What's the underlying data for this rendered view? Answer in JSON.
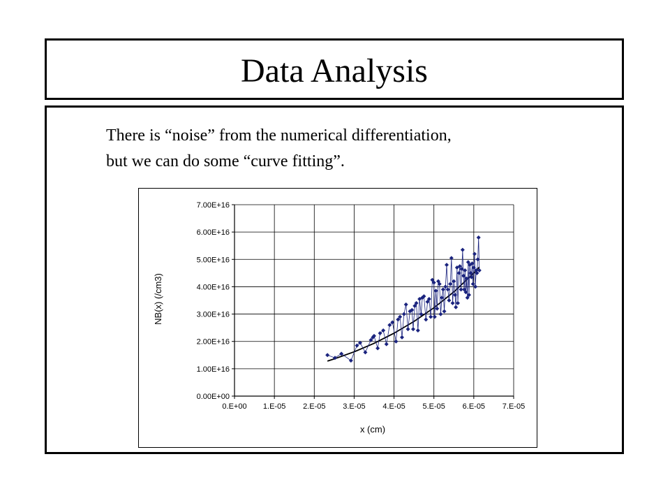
{
  "slide": {
    "title": "Data Analysis",
    "body_lines": [
      "There is “noise” from the numerical differentiation,",
      "but we can do some “curve fitting”."
    ]
  },
  "colors": {
    "series": "#1a237e",
    "trend": "#000000"
  },
  "chart_data": {
    "type": "scatter",
    "title": "",
    "xlabel": "x (cm)",
    "ylabel": "NB(x) (/cm3)",
    "xlim": [
      0,
      7e-05
    ],
    "ylim": [
      0,
      7e+16
    ],
    "x_ticks": [
      0,
      1e-05,
      2e-05,
      3e-05,
      4e-05,
      5e-05,
      6e-05,
      7e-05
    ],
    "x_tick_labels": [
      "0.E+00",
      "1.E-05",
      "2.E-05",
      "3.E-05",
      "4.E-05",
      "5.E-05",
      "6.E-05",
      "7.E-05"
    ],
    "y_ticks": [
      0,
      1e+16,
      2e+16,
      3e+16,
      4e+16,
      5e+16,
      6e+16,
      7e+16
    ],
    "y_tick_labels": [
      "0.00E+00",
      "1.00E+16",
      "2.00E+16",
      "3.00E+16",
      "4.00E+16",
      "5.00E+16",
      "6.00E+16",
      "7.00E+16"
    ],
    "grid": true,
    "legend": "none",
    "series": [
      {
        "style": "line+diamond-markers",
        "x": [
          2.33e-05,
          2.52e-05,
          2.68e-05,
          2.92e-05,
          3.07e-05,
          3.15e-05,
          3.28e-05,
          3.42e-05,
          3.47e-05,
          3.5e-05,
          3.59e-05,
          3.65e-05,
          3.73e-05,
          3.81e-05,
          3.89e-05,
          3.96e-05,
          4.05e-05,
          4.1e-05,
          4.15e-05,
          4.2e-05,
          4.25e-05,
          4.3e-05,
          4.35e-05,
          4.4e-05,
          4.45e-05,
          4.48e-05,
          4.52e-05,
          4.56e-05,
          4.6e-05,
          4.64e-05,
          4.68e-05,
          4.71e-05,
          4.75e-05,
          4.8e-05,
          4.84e-05,
          4.88e-05,
          4.92e-05,
          4.96e-05,
          5e-05,
          5.02e-05,
          5.05e-05,
          5.08e-05,
          5.11e-05,
          5.14e-05,
          5.17e-05,
          5.2e-05,
          5.23e-05,
          5.26e-05,
          5.29e-05,
          5.32e-05,
          5.35e-05,
          5.38e-05,
          5.41e-05,
          5.44e-05,
          5.47e-05,
          5.5e-05,
          5.53e-05,
          5.55e-05,
          5.58e-05,
          5.6e-05,
          5.63e-05,
          5.65e-05,
          5.68e-05,
          5.7e-05,
          5.72e-05,
          5.74e-05,
          5.76e-05,
          5.78e-05,
          5.8e-05,
          5.82e-05,
          5.84e-05,
          5.86e-05,
          5.88e-05,
          5.9e-05,
          5.92e-05,
          5.94e-05,
          5.96e-05,
          5.98e-05,
          6e-05,
          6.02e-05,
          6.04e-05,
          6.06e-05,
          6.08e-05,
          6.1e-05,
          6.12e-05,
          6.14e-05
        ],
        "y": [
          1.5e+16,
          1.4e+16,
          1.55e+16,
          1.3e+16,
          1.85e+16,
          1.95e+16,
          1.6e+16,
          2.05e+16,
          2.15e+16,
          2.2e+16,
          1.75e+16,
          2.3e+16,
          2.4e+16,
          1.9e+16,
          2.6e+16,
          2.7e+16,
          2e+16,
          2.8e+16,
          2.9e+16,
          2.15e+16,
          3e+16,
          3.35e+16,
          2.45e+16,
          3.1e+16,
          3.15e+16,
          2.45e+16,
          3.3e+16,
          3.4e+16,
          2.4e+16,
          3.55e+16,
          3e+16,
          3.6e+16,
          3.65e+16,
          2.8e+16,
          3.45e+16,
          3.55e+16,
          2.9e+16,
          4.25e+16,
          4.15e+16,
          2.9e+16,
          3.85e+16,
          3.2e+16,
          4.2e+16,
          4.1e+16,
          3e+16,
          3.6e+16,
          3.9e+16,
          3.1e+16,
          4e+16,
          4.8e+16,
          3.9e+16,
          3.5e+16,
          4.1e+16,
          5.05e+16,
          3.4e+16,
          4.2e+16,
          3.7e+16,
          3.25e+16,
          4.7e+16,
          3.4e+16,
          4.5e+16,
          4.75e+16,
          3.9e+16,
          4.65e+16,
          5.35e+16,
          4.4e+16,
          3.9e+16,
          4.6e+16,
          3.8e+16,
          4.3e+16,
          3.6e+16,
          4.9e+16,
          3.7e+16,
          4.8e+16,
          4.5e+16,
          4.35e+16,
          4.85e+16,
          4.1e+16,
          4.7e+16,
          5.2e+16,
          4e+16,
          4.6e+16,
          4.5e+16,
          5e+16,
          5.8e+16,
          4.6e+16
        ]
      },
      {
        "style": "trendline",
        "x": [
          2.33e-05,
          2.5e-05,
          3e-05,
          3.5e-05,
          4e-05,
          4.5e-05,
          5e-05,
          5.5e-05,
          6e-05,
          6.14e-05
        ],
        "y": [
          1.28e+16,
          1.36e+16,
          1.62e+16,
          1.93e+16,
          2.3e+16,
          2.73e+16,
          3.23e+16,
          3.81e+16,
          4.5e+16,
          4.72e+16
        ]
      }
    ]
  }
}
